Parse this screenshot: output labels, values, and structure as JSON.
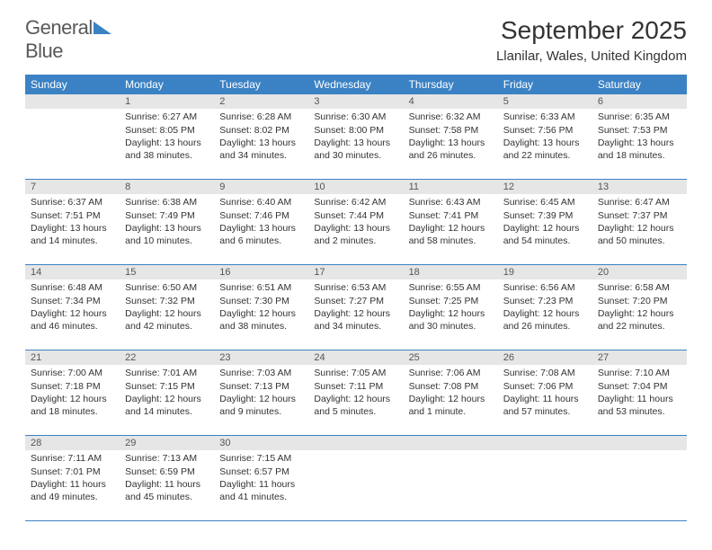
{
  "logo": {
    "text1": "General",
    "text2": "Blue"
  },
  "title": "September 2025",
  "location": "Llanilar, Wales, United Kingdom",
  "colors": {
    "header_bg": "#3b82c4",
    "header_text": "#ffffff",
    "daynum_bg": "#e6e6e6",
    "text": "#333333",
    "logo_gray": "#58595b",
    "logo_blue": "#3b82c4"
  },
  "daysOfWeek": [
    "Sunday",
    "Monday",
    "Tuesday",
    "Wednesday",
    "Thursday",
    "Friday",
    "Saturday"
  ],
  "weeks": [
    [
      {
        "n": "",
        "lines": []
      },
      {
        "n": "1",
        "lines": [
          "Sunrise: 6:27 AM",
          "Sunset: 8:05 PM",
          "Daylight: 13 hours and 38 minutes."
        ]
      },
      {
        "n": "2",
        "lines": [
          "Sunrise: 6:28 AM",
          "Sunset: 8:02 PM",
          "Daylight: 13 hours and 34 minutes."
        ]
      },
      {
        "n": "3",
        "lines": [
          "Sunrise: 6:30 AM",
          "Sunset: 8:00 PM",
          "Daylight: 13 hours and 30 minutes."
        ]
      },
      {
        "n": "4",
        "lines": [
          "Sunrise: 6:32 AM",
          "Sunset: 7:58 PM",
          "Daylight: 13 hours and 26 minutes."
        ]
      },
      {
        "n": "5",
        "lines": [
          "Sunrise: 6:33 AM",
          "Sunset: 7:56 PM",
          "Daylight: 13 hours and 22 minutes."
        ]
      },
      {
        "n": "6",
        "lines": [
          "Sunrise: 6:35 AM",
          "Sunset: 7:53 PM",
          "Daylight: 13 hours and 18 minutes."
        ]
      }
    ],
    [
      {
        "n": "7",
        "lines": [
          "Sunrise: 6:37 AM",
          "Sunset: 7:51 PM",
          "Daylight: 13 hours and 14 minutes."
        ]
      },
      {
        "n": "8",
        "lines": [
          "Sunrise: 6:38 AM",
          "Sunset: 7:49 PM",
          "Daylight: 13 hours and 10 minutes."
        ]
      },
      {
        "n": "9",
        "lines": [
          "Sunrise: 6:40 AM",
          "Sunset: 7:46 PM",
          "Daylight: 13 hours and 6 minutes."
        ]
      },
      {
        "n": "10",
        "lines": [
          "Sunrise: 6:42 AM",
          "Sunset: 7:44 PM",
          "Daylight: 13 hours and 2 minutes."
        ]
      },
      {
        "n": "11",
        "lines": [
          "Sunrise: 6:43 AM",
          "Sunset: 7:41 PM",
          "Daylight: 12 hours and 58 minutes."
        ]
      },
      {
        "n": "12",
        "lines": [
          "Sunrise: 6:45 AM",
          "Sunset: 7:39 PM",
          "Daylight: 12 hours and 54 minutes."
        ]
      },
      {
        "n": "13",
        "lines": [
          "Sunrise: 6:47 AM",
          "Sunset: 7:37 PM",
          "Daylight: 12 hours and 50 minutes."
        ]
      }
    ],
    [
      {
        "n": "14",
        "lines": [
          "Sunrise: 6:48 AM",
          "Sunset: 7:34 PM",
          "Daylight: 12 hours and 46 minutes."
        ]
      },
      {
        "n": "15",
        "lines": [
          "Sunrise: 6:50 AM",
          "Sunset: 7:32 PM",
          "Daylight: 12 hours and 42 minutes."
        ]
      },
      {
        "n": "16",
        "lines": [
          "Sunrise: 6:51 AM",
          "Sunset: 7:30 PM",
          "Daylight: 12 hours and 38 minutes."
        ]
      },
      {
        "n": "17",
        "lines": [
          "Sunrise: 6:53 AM",
          "Sunset: 7:27 PM",
          "Daylight: 12 hours and 34 minutes."
        ]
      },
      {
        "n": "18",
        "lines": [
          "Sunrise: 6:55 AM",
          "Sunset: 7:25 PM",
          "Daylight: 12 hours and 30 minutes."
        ]
      },
      {
        "n": "19",
        "lines": [
          "Sunrise: 6:56 AM",
          "Sunset: 7:23 PM",
          "Daylight: 12 hours and 26 minutes."
        ]
      },
      {
        "n": "20",
        "lines": [
          "Sunrise: 6:58 AM",
          "Sunset: 7:20 PM",
          "Daylight: 12 hours and 22 minutes."
        ]
      }
    ],
    [
      {
        "n": "21",
        "lines": [
          "Sunrise: 7:00 AM",
          "Sunset: 7:18 PM",
          "Daylight: 12 hours and 18 minutes."
        ]
      },
      {
        "n": "22",
        "lines": [
          "Sunrise: 7:01 AM",
          "Sunset: 7:15 PM",
          "Daylight: 12 hours and 14 minutes."
        ]
      },
      {
        "n": "23",
        "lines": [
          "Sunrise: 7:03 AM",
          "Sunset: 7:13 PM",
          "Daylight: 12 hours and 9 minutes."
        ]
      },
      {
        "n": "24",
        "lines": [
          "Sunrise: 7:05 AM",
          "Sunset: 7:11 PM",
          "Daylight: 12 hours and 5 minutes."
        ]
      },
      {
        "n": "25",
        "lines": [
          "Sunrise: 7:06 AM",
          "Sunset: 7:08 PM",
          "Daylight: 12 hours and 1 minute."
        ]
      },
      {
        "n": "26",
        "lines": [
          "Sunrise: 7:08 AM",
          "Sunset: 7:06 PM",
          "Daylight: 11 hours and 57 minutes."
        ]
      },
      {
        "n": "27",
        "lines": [
          "Sunrise: 7:10 AM",
          "Sunset: 7:04 PM",
          "Daylight: 11 hours and 53 minutes."
        ]
      }
    ],
    [
      {
        "n": "28",
        "lines": [
          "Sunrise: 7:11 AM",
          "Sunset: 7:01 PM",
          "Daylight: 11 hours and 49 minutes."
        ]
      },
      {
        "n": "29",
        "lines": [
          "Sunrise: 7:13 AM",
          "Sunset: 6:59 PM",
          "Daylight: 11 hours and 45 minutes."
        ]
      },
      {
        "n": "30",
        "lines": [
          "Sunrise: 7:15 AM",
          "Sunset: 6:57 PM",
          "Daylight: 11 hours and 41 minutes."
        ]
      },
      {
        "n": "",
        "lines": []
      },
      {
        "n": "",
        "lines": []
      },
      {
        "n": "",
        "lines": []
      },
      {
        "n": "",
        "lines": []
      }
    ]
  ]
}
